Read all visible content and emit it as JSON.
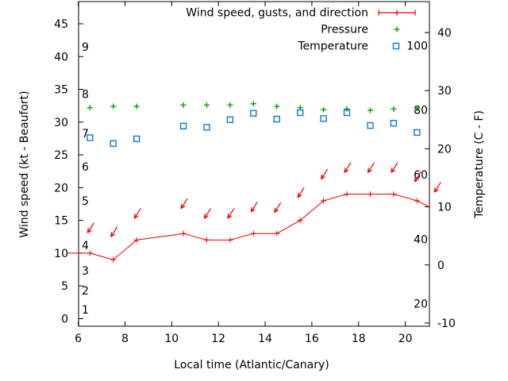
{
  "figure": {
    "xlabel": "Local time (Atlantic/Canary)",
    "ylabel": "Wind speed (kt - Beaufort)",
    "y2label": "Temperature (C - F)",
    "background": "#ffffff",
    "border_color": "#000000"
  },
  "legend": {
    "position": "top-right-inside",
    "entries": [
      {
        "label": "Wind speed, gusts, and direction",
        "color": "#e60000",
        "marker": "line-plus"
      },
      {
        "label": "Pressure",
        "color": "#00a400",
        "marker": "plus"
      },
      {
        "label": "Temperature",
        "color": "#0b7ad9",
        "marker": "open-square"
      }
    ]
  },
  "chart_data": {
    "type": "line",
    "title": "",
    "xlabel": "Local time (Atlantic/Canary)",
    "ylabel": "Wind speed (kt - Beaufort)",
    "y2label": "Temperature (C - F)",
    "grid": false,
    "x_axis": {
      "ticks": [
        6,
        8,
        10,
        12,
        14,
        16,
        18,
        20
      ],
      "range": [
        6,
        21
      ]
    },
    "y_axis": {
      "ticks": [
        0,
        5,
        10,
        15,
        20,
        25,
        30,
        35,
        40,
        45
      ],
      "range": [
        -1,
        47.5
      ],
      "beaufort_scale": [
        {
          "force": 1,
          "at_kt": 1.4
        },
        {
          "force": 2,
          "at_kt": 4.3
        },
        {
          "force": 3,
          "at_kt": 7.3
        },
        {
          "force": 4,
          "at_kt": 11.2
        },
        {
          "force": 5,
          "at_kt": 18.0
        },
        {
          "force": 6,
          "at_kt": 23.2
        },
        {
          "force": 7,
          "at_kt": 28.3
        },
        {
          "force": 8,
          "at_kt": 34.3
        },
        {
          "force": 9,
          "at_kt": 41.5
        }
      ]
    },
    "y2_axis": {
      "ticks_c": [
        -10,
        0,
        10,
        20,
        30,
        40
      ],
      "range_c": [
        -10.5,
        45.3
      ],
      "fahrenheit_labels": [
        100,
        80,
        60,
        40,
        20
      ]
    },
    "x": [
      6.5,
      7.5,
      8.5,
      10.5,
      11.5,
      12.5,
      13.5,
      14.5,
      15.5,
      16.5,
      17.5,
      18.5,
      19.5,
      20.5
    ],
    "series": [
      {
        "name": "Wind speed, gusts, and direction",
        "color": "#e60000",
        "axis": "left",
        "wind_kt": [
          10,
          9,
          12,
          13,
          12,
          12,
          13,
          13,
          15,
          18,
          19,
          19,
          19,
          18
        ],
        "gust_arrow_tip_kt": [
          13.1,
          12.5,
          15.3,
          16.8,
          15.3,
          15.3,
          16.3,
          16.2,
          18.5,
          21.3,
          22.3,
          22.3,
          22.3,
          20.9
        ],
        "wind_from": "NE",
        "lead_in_point": {
          "x": 5.55,
          "kt": 10
        },
        "tail_out_point": {
          "x": 21.4,
          "kt": 16.4
        },
        "edge_arrow": {
          "x": 21.35,
          "tip_kt": 19.3
        }
      },
      {
        "name": "Pressure",
        "color": "#00a400",
        "axis": "left",
        "note": "no pressure scale shown; values read in left-axis (kt) units",
        "y_on_left_axis_kt": [
          32.2,
          32.4,
          32.4,
          32.6,
          32.6,
          32.6,
          32.8,
          32.4,
          32.2,
          31.9,
          32.0,
          31.8,
          32.0,
          32.1
        ]
      },
      {
        "name": "Temperature",
        "color": "#0b7ad9",
        "axis": "right",
        "temperature_c": [
          21.9,
          20.9,
          21.7,
          23.9,
          23.7,
          25.0,
          26.1,
          25.1,
          26.2,
          25.2,
          26.2,
          24.0,
          24.4,
          22.8
        ]
      }
    ]
  }
}
